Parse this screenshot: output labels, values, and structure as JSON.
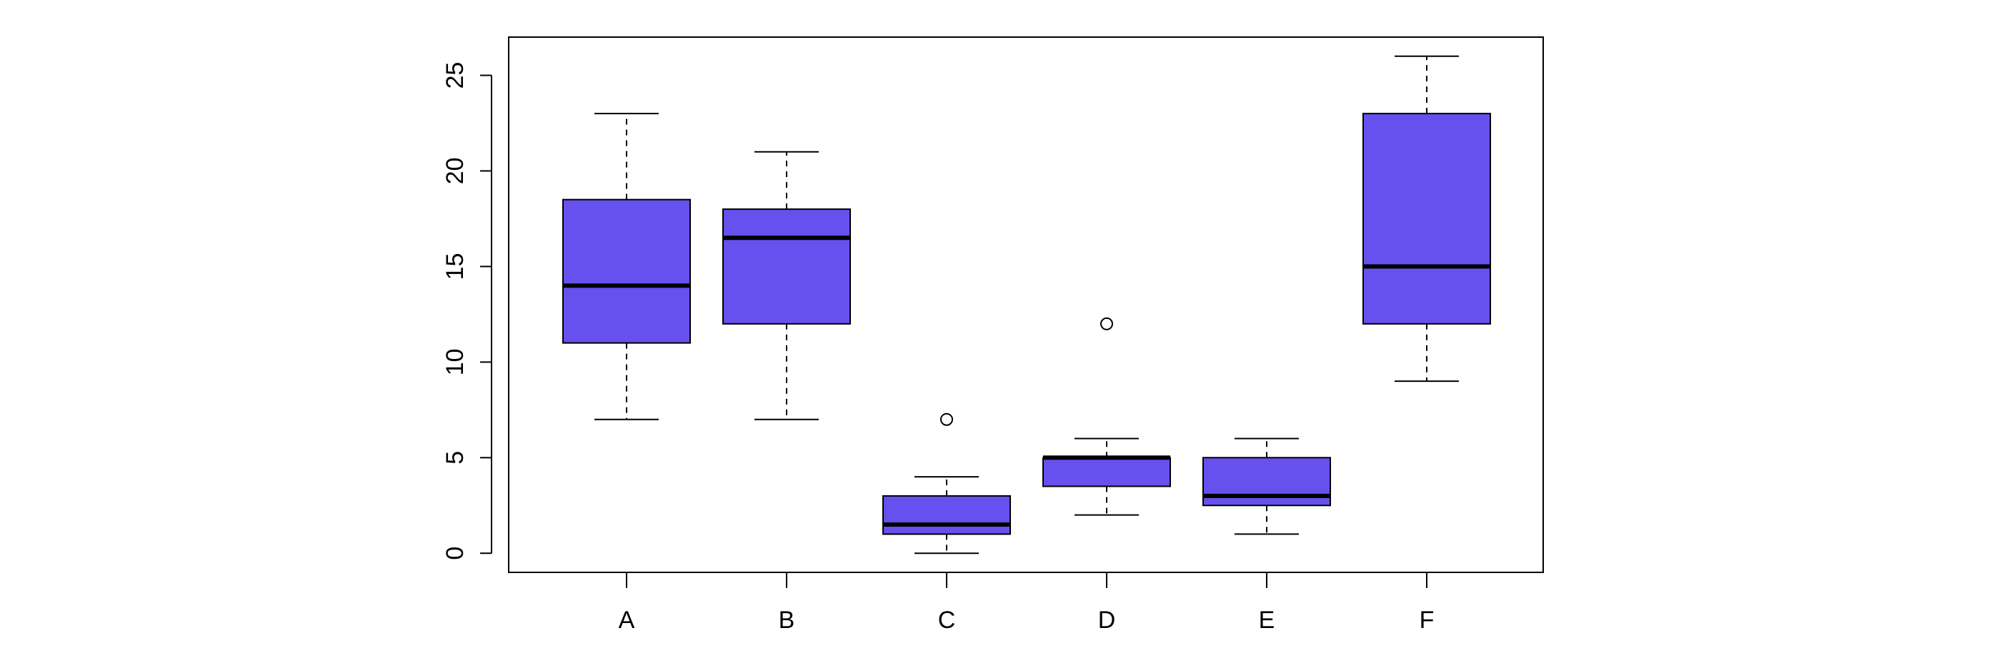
{
  "chart_data": {
    "type": "boxplot",
    "title": "",
    "xlabel": "",
    "ylabel": "",
    "categories": [
      "A",
      "B",
      "C",
      "D",
      "E",
      "F"
    ],
    "boxes": [
      {
        "category": "A",
        "whisker_low": 7,
        "q1": 11,
        "median": 14,
        "q3": 18.5,
        "whisker_high": 23,
        "outliers": []
      },
      {
        "category": "B",
        "whisker_low": 7,
        "q1": 12,
        "median": 16.5,
        "q3": 18,
        "whisker_high": 21,
        "outliers": []
      },
      {
        "category": "C",
        "whisker_low": 0,
        "q1": 1,
        "median": 1.5,
        "q3": 3,
        "whisker_high": 4,
        "outliers": [
          7
        ]
      },
      {
        "category": "D",
        "whisker_low": 2,
        "q1": 3.5,
        "median": 5,
        "q3": 5,
        "whisker_high": 6,
        "outliers": [
          12
        ]
      },
      {
        "category": "E",
        "whisker_low": 1,
        "q1": 2.5,
        "median": 3,
        "q3": 5,
        "whisker_high": 6,
        "outliers": []
      },
      {
        "category": "F",
        "whisker_low": 9,
        "q1": 12,
        "median": 15,
        "q3": 23,
        "whisker_high": 26,
        "outliers": []
      }
    ],
    "y_ticks": [
      "0",
      "5",
      "10",
      "15",
      "20",
      "25"
    ],
    "ylim": [
      -1,
      27
    ],
    "grid": false,
    "legend": "none",
    "colors": {
      "box_fill": "#6651EE",
      "box_stroke": "#000000",
      "median": "#000000"
    }
  }
}
